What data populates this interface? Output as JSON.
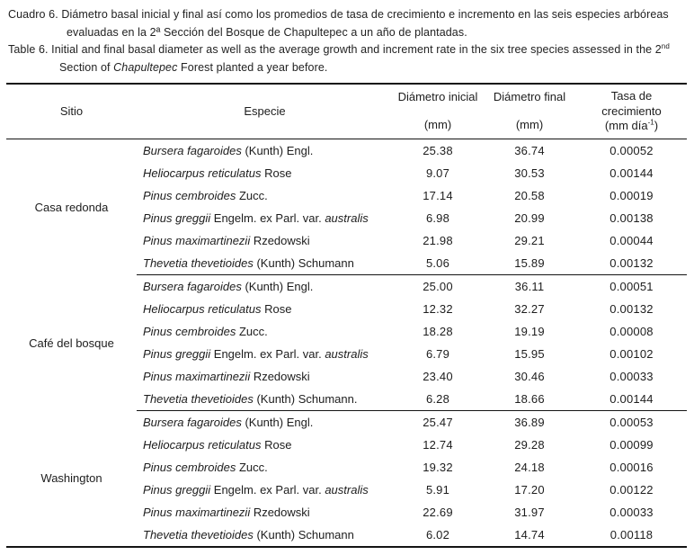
{
  "caption_es": {
    "line1": "Cuadro 6. Diámetro basal inicial y final así como los promedios de tasa de crecimiento e incremento en las seis especies arbóreas",
    "line2": "evaluadas en la 2ª Sección del Bosque de Chapultepec a un año de plantadas."
  },
  "caption_en": {
    "line1_p1": "Table 6. Initial and final basal diameter as well as the average growth and increment rate in the six tree species assessed in the 2",
    "line1_sup": "nd",
    "line2_p1": "Section of ",
    "line2_italic": "Chapultepec",
    "line2_p2": " Forest planted a year before."
  },
  "table": {
    "headers": {
      "site": "Sitio",
      "species": "Especie",
      "diam_initial_line1": "Diámetro inicial",
      "diam_initial_line2": "(mm)",
      "diam_final_line1": "Diámetro final",
      "diam_final_line2": "(mm)",
      "rate_line1": "Tasa de",
      "rate_line2": "crecimiento",
      "rate_unit_pre": "(mm día",
      "rate_unit_sup": "-1",
      "rate_unit_post": ")"
    },
    "groups": [
      {
        "site": "Casa redonda",
        "rows": [
          {
            "species_italic": "Bursera fagaroides",
            "species_regular": " (Kunth) Engl.",
            "species_italic2": "",
            "diam_initial": "25.38",
            "diam_final": "36.74",
            "growth_rate": "0.00052"
          },
          {
            "species_italic": "Heliocarpus reticulatus",
            "species_regular": " Rose",
            "species_italic2": "",
            "diam_initial": "9.07",
            "diam_final": "30.53",
            "growth_rate": "0.00144"
          },
          {
            "species_italic": "Pinus cembroides",
            "species_regular": " Zucc.",
            "species_italic2": "",
            "diam_initial": "17.14",
            "diam_final": "20.58",
            "growth_rate": "0.00019"
          },
          {
            "species_italic": "Pinus greggii",
            "species_regular": " Engelm. ex Parl. var. ",
            "species_italic2": "australis",
            "diam_initial": "6.98",
            "diam_final": "20.99",
            "growth_rate": "0.00138"
          },
          {
            "species_italic": "Pinus maximartinezii",
            "species_regular": " Rzedowski",
            "species_italic2": "",
            "diam_initial": "21.98",
            "diam_final": "29.21",
            "growth_rate": "0.00044"
          },
          {
            "species_italic": "Thevetia thevetioides",
            "species_regular": " (Kunth) Schumann",
            "species_italic2": "",
            "diam_initial": "5.06",
            "diam_final": "15.89",
            "growth_rate": "0.00132"
          }
        ]
      },
      {
        "site": "Café del bosque",
        "rows": [
          {
            "species_italic": "Bursera fagaroides",
            "species_regular": " (Kunth) Engl.",
            "species_italic2": "",
            "diam_initial": "25.00",
            "diam_final": "36.11",
            "growth_rate": "0.00051"
          },
          {
            "species_italic": "Heliocarpus reticulatus",
            "species_regular": " Rose",
            "species_italic2": "",
            "diam_initial": "12.32",
            "diam_final": "32.27",
            "growth_rate": "0.00132"
          },
          {
            "species_italic": "Pinus cembroides",
            "species_regular": " Zucc.",
            "species_italic2": "",
            "diam_initial": "18.28",
            "diam_final": "19.19",
            "growth_rate": "0.00008"
          },
          {
            "species_italic": "Pinus greggii",
            "species_regular": " Engelm. ex Parl. var. ",
            "species_italic2": "australis",
            "diam_initial": "6.79",
            "diam_final": "15.95",
            "growth_rate": "0.00102"
          },
          {
            "species_italic": "Pinus maximartinezii",
            "species_regular": " Rzedowski",
            "species_italic2": "",
            "diam_initial": "23.40",
            "diam_final": "30.46",
            "growth_rate": "0.00033"
          },
          {
            "species_italic": "Thevetia thevetioides",
            "species_regular": " (Kunth) Schumann.",
            "species_italic2": "",
            "diam_initial": "6.28",
            "diam_final": "18.66",
            "growth_rate": "0.00144"
          }
        ]
      },
      {
        "site": "Washington",
        "rows": [
          {
            "species_italic": "Bursera fagaroides",
            "species_regular": " (Kunth) Engl.",
            "species_italic2": "",
            "diam_initial": "25.47",
            "diam_final": "36.89",
            "growth_rate": "0.00053"
          },
          {
            "species_italic": "Heliocarpus reticulatus",
            "species_regular": " Rose",
            "species_italic2": "",
            "diam_initial": "12.74",
            "diam_final": "29.28",
            "growth_rate": "0.00099"
          },
          {
            "species_italic": "Pinus cembroides",
            "species_regular": " Zucc.",
            "species_italic2": "",
            "diam_initial": "19.32",
            "diam_final": "24.18",
            "growth_rate": "0.00016"
          },
          {
            "species_italic": "Pinus greggii",
            "species_regular": " Engelm. ex Parl. var. ",
            "species_italic2": "australis",
            "diam_initial": "5.91",
            "diam_final": "17.20",
            "growth_rate": "0.00122"
          },
          {
            "species_italic": "Pinus maximartinezii",
            "species_regular": " Rzedowski",
            "species_italic2": "",
            "diam_initial": "22.69",
            "diam_final": "31.97",
            "growth_rate": "0.00033"
          },
          {
            "species_italic": "Thevetia thevetioides",
            "species_regular": " (Kunth) Schumann",
            "species_italic2": "",
            "diam_initial": "6.02",
            "diam_final": "14.74",
            "growth_rate": "0.00118"
          }
        ]
      }
    ]
  }
}
